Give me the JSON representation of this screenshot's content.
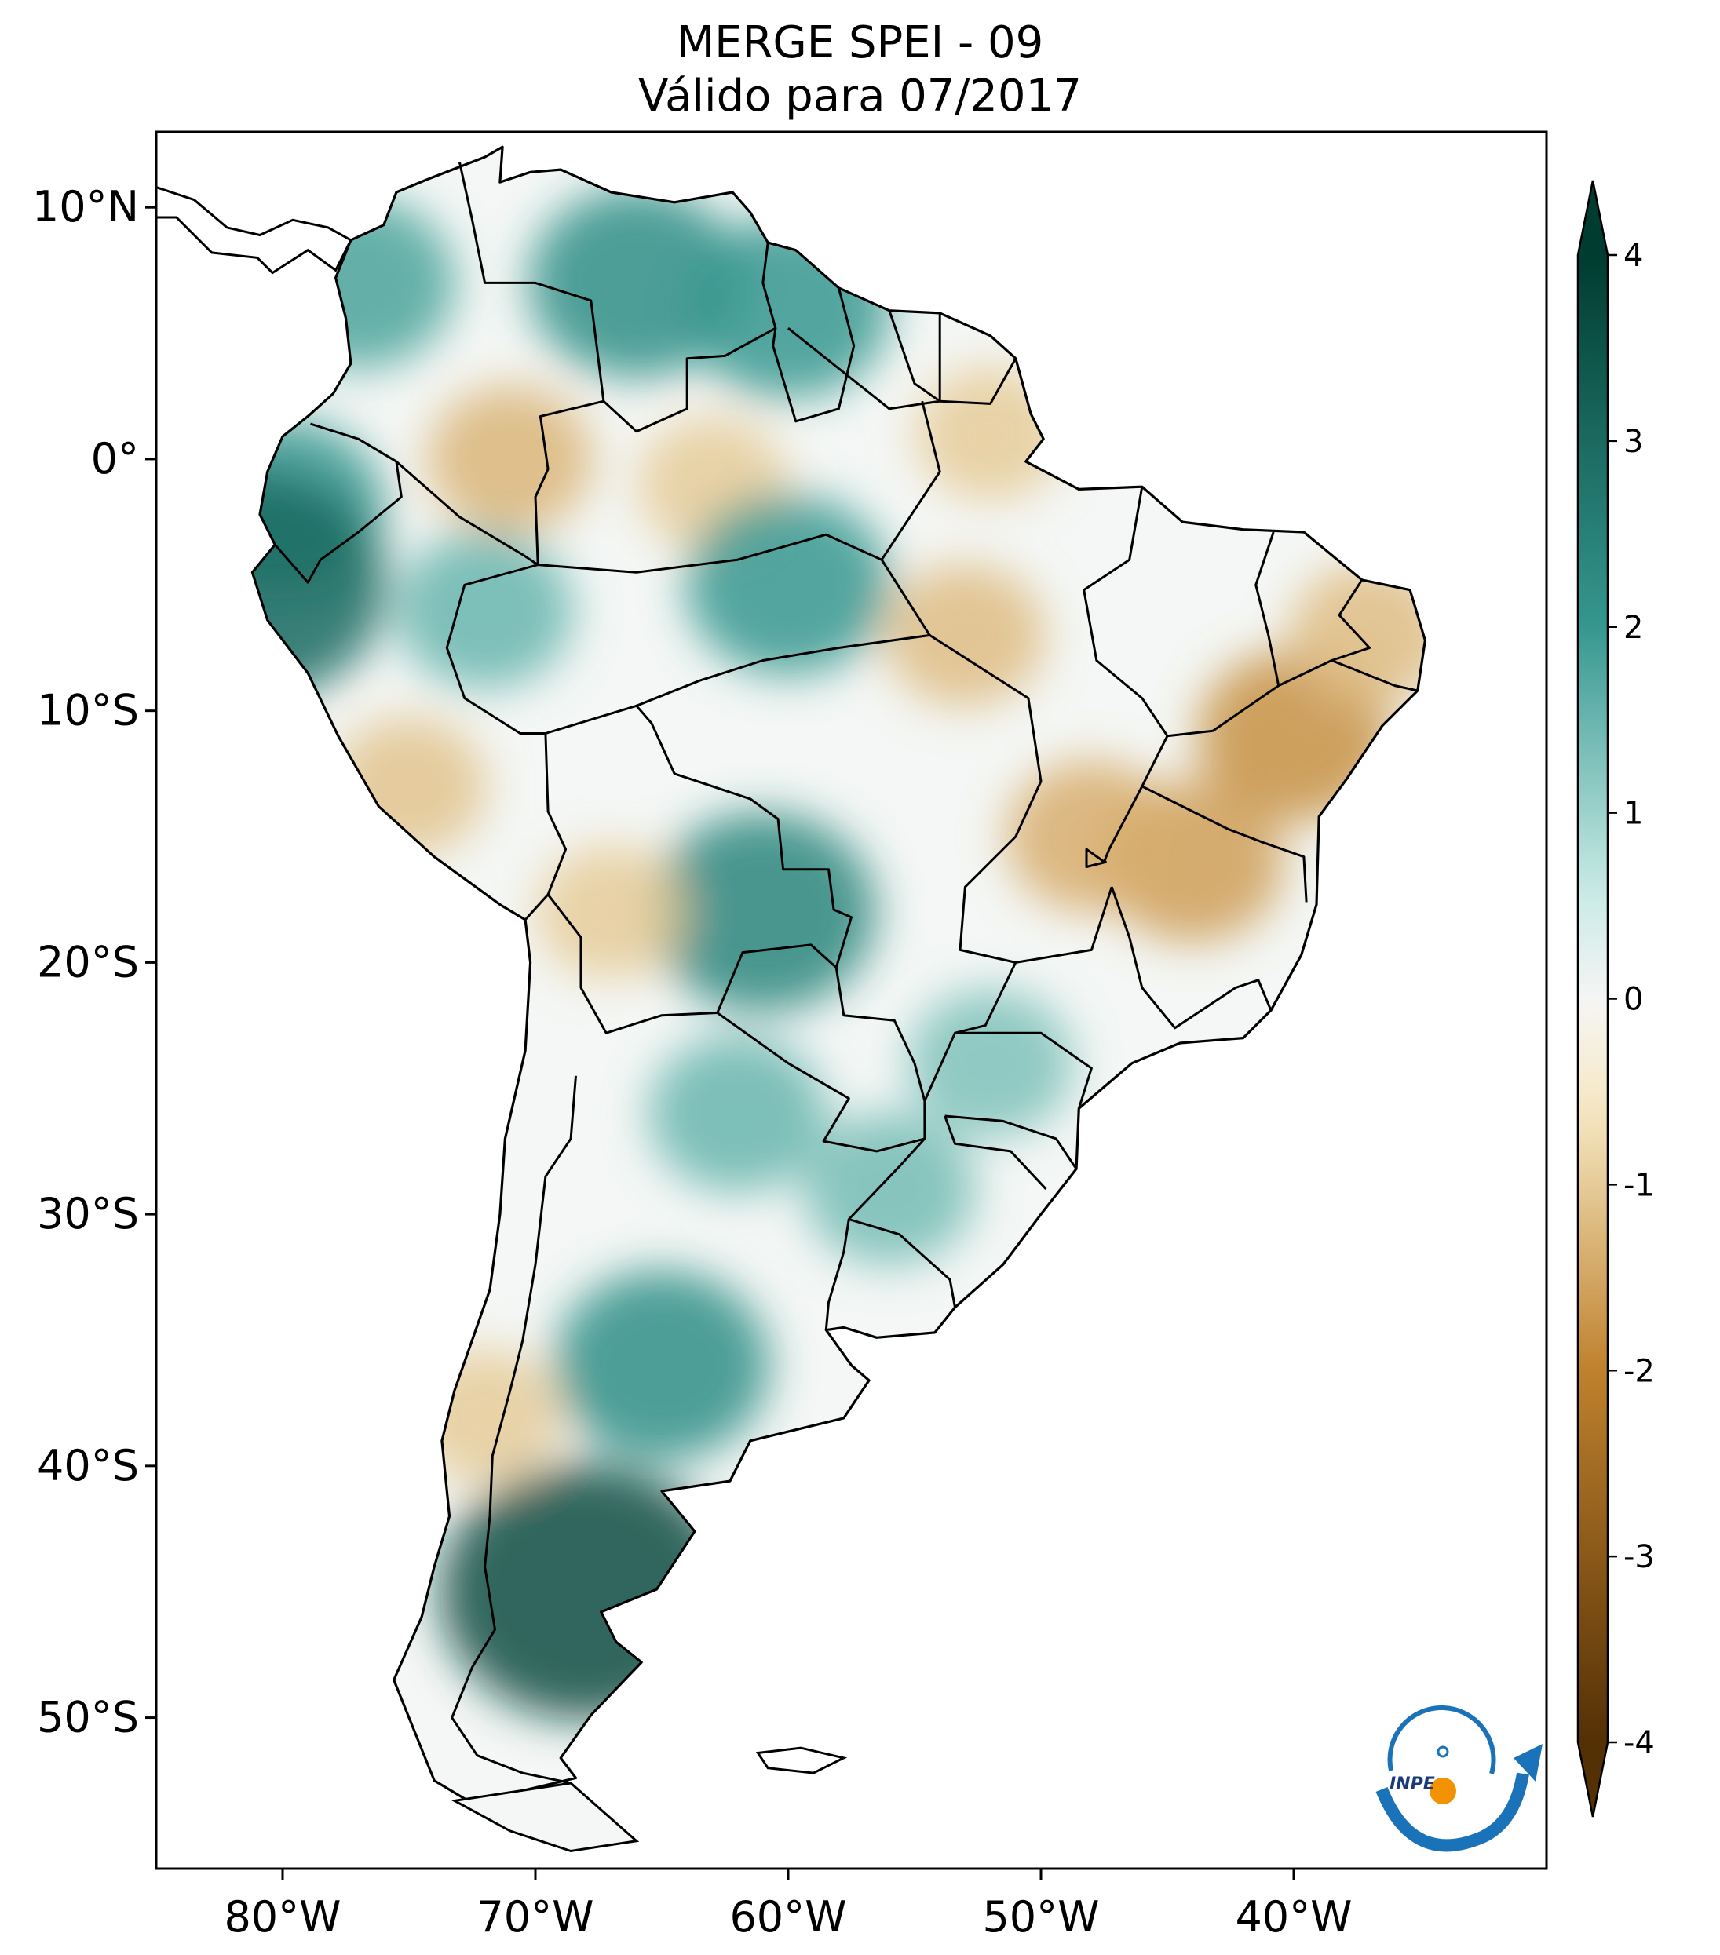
{
  "title": {
    "line1": "MERGE   SPEI - 09",
    "line2": "Válido para 07/2017"
  },
  "map": {
    "region": "South America",
    "lon_range": [
      -85,
      -30
    ],
    "lat_range": [
      -56,
      13
    ],
    "x_ticks": [
      {
        "value": -80,
        "label": "80°W"
      },
      {
        "value": -70,
        "label": "70°W"
      },
      {
        "value": -60,
        "label": "60°W"
      },
      {
        "value": -50,
        "label": "50°W"
      },
      {
        "value": -40,
        "label": "40°W"
      }
    ],
    "y_ticks": [
      {
        "value": 10,
        "label": "10°N"
      },
      {
        "value": 0,
        "label": "0°"
      },
      {
        "value": -10,
        "label": "10°S"
      },
      {
        "value": -20,
        "label": "20°S"
      },
      {
        "value": -30,
        "label": "30°S"
      },
      {
        "value": -40,
        "label": "40°S"
      },
      {
        "value": -50,
        "label": "50°S"
      }
    ],
    "anomaly_zones": [
      {
        "lon": -66,
        "lat": 7,
        "value": 2.2
      },
      {
        "lon": -60,
        "lat": 6,
        "value": 2.0
      },
      {
        "lon": -77,
        "lat": 7,
        "value": 1.8
      },
      {
        "lon": -80,
        "lat": -2,
        "value": 2.0
      },
      {
        "lon": -81,
        "lat": -5,
        "value": 3.0
      },
      {
        "lon": -72,
        "lat": -6,
        "value": 1.5
      },
      {
        "lon": -71,
        "lat": 0,
        "value": -1.3
      },
      {
        "lon": -63,
        "lat": -1,
        "value": -1.0
      },
      {
        "lon": -53,
        "lat": -7,
        "value": -1.2
      },
      {
        "lon": -52,
        "lat": 1,
        "value": -1.0
      },
      {
        "lon": -40,
        "lat": -11,
        "value": -1.8
      },
      {
        "lon": -44,
        "lat": -16,
        "value": -1.6
      },
      {
        "lon": -48,
        "lat": -15,
        "value": -1.4
      },
      {
        "lon": -37,
        "lat": -7,
        "value": -1.2
      },
      {
        "lon": -61,
        "lat": -18,
        "value": 2.4
      },
      {
        "lon": -67,
        "lat": -18,
        "value": -1.0
      },
      {
        "lon": -75,
        "lat": -13,
        "value": -1.1
      },
      {
        "lon": -65,
        "lat": -36,
        "value": 2.2
      },
      {
        "lon": -68,
        "lat": -45,
        "value": 3.6
      },
      {
        "lon": -72,
        "lat": -38,
        "value": -1.0
      },
      {
        "lon": -56,
        "lat": -29,
        "value": 1.4
      },
      {
        "lon": -62,
        "lat": -26,
        "value": 1.5
      },
      {
        "lon": -60,
        "lat": -5,
        "value": 2.0
      },
      {
        "lon": -52,
        "lat": -24,
        "value": 1.3
      }
    ]
  },
  "colorbar": {
    "min": -4,
    "max": 4,
    "ticks": [
      {
        "value": 4,
        "label": "4"
      },
      {
        "value": 3,
        "label": "3"
      },
      {
        "value": 2,
        "label": "2"
      },
      {
        "value": 1,
        "label": "1"
      },
      {
        "value": 0,
        "label": "0"
      },
      {
        "value": -1,
        "label": "-1"
      },
      {
        "value": -2,
        "label": "-2"
      },
      {
        "value": -3,
        "label": "-3"
      },
      {
        "value": -4,
        "label": "-4"
      }
    ],
    "colors": {
      "dry_max": "#543005",
      "dry_mid": "#bf812d",
      "dry_low": "#f6e8c3",
      "neutral": "#f5f5f5",
      "wet_low": "#c7eae5",
      "wet_mid": "#35978f",
      "wet_max": "#003c30"
    }
  },
  "logo": {
    "text": "INPE",
    "colors": {
      "arc": "#1a73b8",
      "dot": "#f39200"
    }
  }
}
